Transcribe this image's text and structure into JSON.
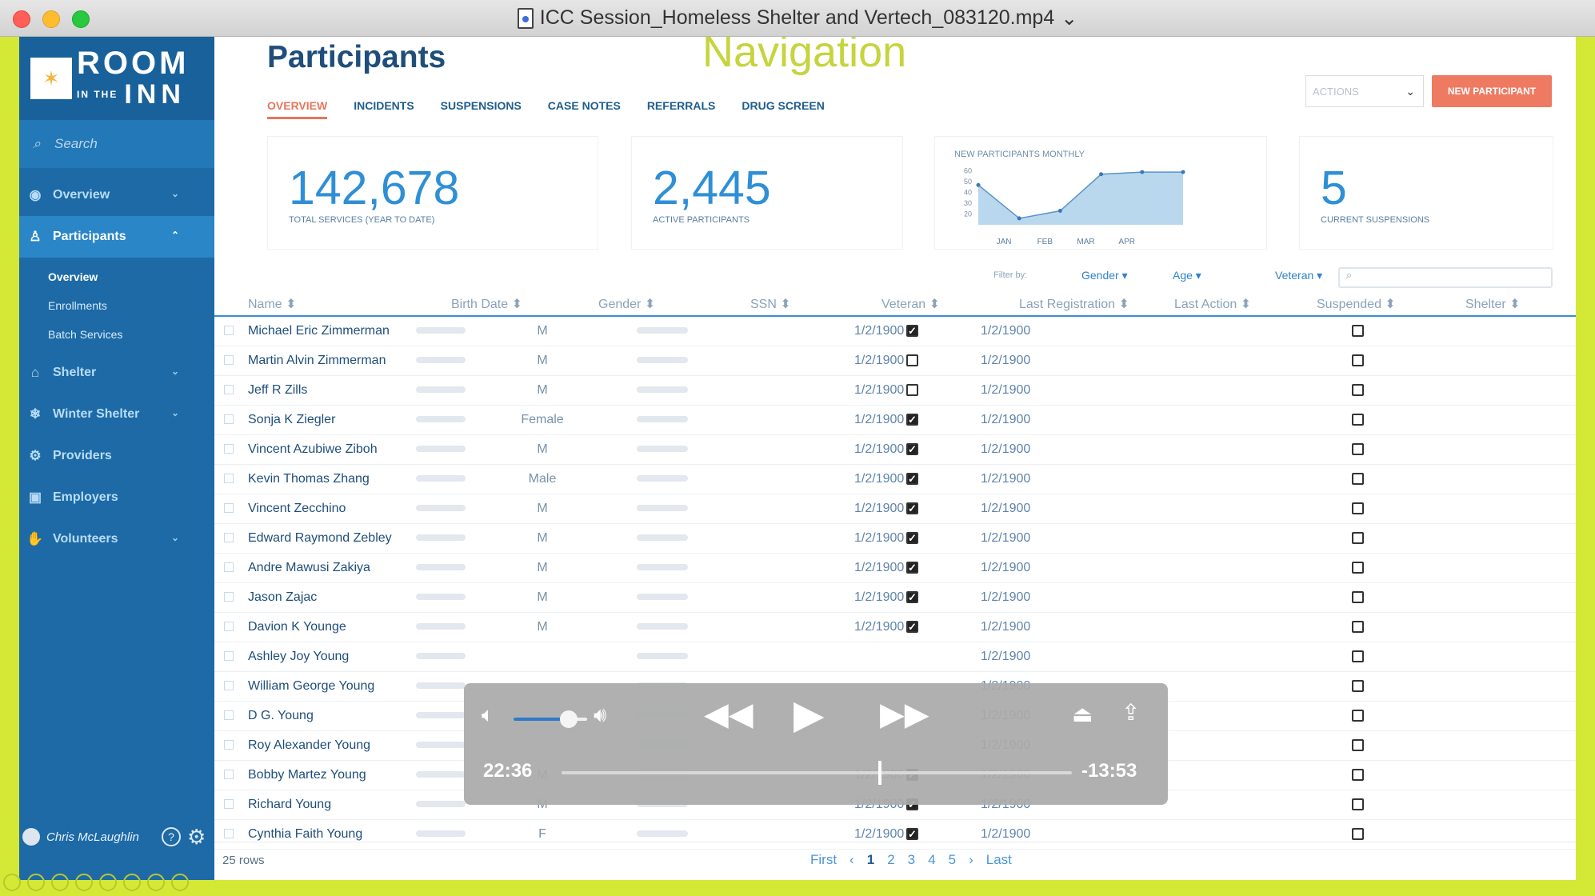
{
  "window": {
    "title": "ICC Session_Homeless Shelter and Vertech_083120.mp4"
  },
  "overlay_text": "Navigation",
  "logo": {
    "room": "ROOM",
    "in_the": "IN THE",
    "inn": "INN"
  },
  "sidebar": {
    "search_placeholder": "Search",
    "items": [
      {
        "label": "Overview",
        "icon": "eye-icon"
      },
      {
        "label": "Participants",
        "icon": "user-icon"
      },
      {
        "label": "Shelter",
        "icon": "home-icon"
      },
      {
        "label": "Winter Shelter",
        "icon": "snowflake-icon"
      },
      {
        "label": "Providers",
        "icon": "gear-icon"
      },
      {
        "label": "Employers",
        "icon": "briefcase-icon"
      },
      {
        "label": "Volunteers",
        "icon": "hand-icon"
      }
    ],
    "subitems": [
      "Overview",
      "Enrollments",
      "Batch Services"
    ]
  },
  "user": {
    "name": "Chris McLaughlin"
  },
  "page": {
    "title": "Participants"
  },
  "tabs": [
    "OVERVIEW",
    "INCIDENTS",
    "SUSPENSIONS",
    "CASE NOTES",
    "REFERRALS",
    "DRUG SCREEN"
  ],
  "actions": {
    "label": "ACTIONS",
    "new_participant": "NEW PARTICIPANT"
  },
  "stats": [
    {
      "value": "142,678",
      "caption": "TOTAL SERVICES (YEAR TO DATE)"
    },
    {
      "value": "2,445",
      "caption": "ACTIVE PARTICIPANTS"
    },
    {
      "value": "5",
      "caption": "CURRENT SUSPENSIONS"
    }
  ],
  "chart_data": {
    "type": "area",
    "title": "NEW PARTICIPANTS MONTHLY",
    "categories": [
      "JAN",
      "FEB",
      "MAR",
      "APR"
    ],
    "yticks": [
      60,
      50,
      40,
      30,
      20
    ],
    "ylim": [
      10,
      65
    ],
    "x": [
      0,
      0.25,
      0.5,
      0.75,
      1.0,
      1.25
    ],
    "values": [
      47,
      16,
      23,
      57,
      59,
      59
    ],
    "accent": "#2f8fd6"
  },
  "filters": {
    "label": "Filter by:",
    "gender": "Gender",
    "age": "Age",
    "veteran": "Veteran"
  },
  "table": {
    "columns": [
      "Name",
      "Birth Date",
      "Gender",
      "SSN",
      "Veteran",
      "Last Registration",
      "Last Action",
      "Suspended",
      "Shelter"
    ],
    "rows": [
      {
        "name": "Michael Eric Zimmerman",
        "gender": "M",
        "veteran": true,
        "last_registration": "1/2/1900",
        "last_action": "1/2/1900",
        "suspended": false
      },
      {
        "name": "Martin Alvin Zimmerman",
        "gender": "M",
        "veteran": false,
        "last_registration": "1/2/1900",
        "last_action": "1/2/1900",
        "suspended": false
      },
      {
        "name": "Jeff R Zills",
        "gender": "M",
        "veteran": false,
        "last_registration": "1/2/1900",
        "last_action": "1/2/1900",
        "suspended": false
      },
      {
        "name": "Sonja K Ziegler",
        "gender": "Female",
        "veteran": true,
        "last_registration": "1/2/1900",
        "last_action": "1/2/1900",
        "suspended": false
      },
      {
        "name": "Vincent Azubiwe Ziboh",
        "gender": "M",
        "veteran": true,
        "last_registration": "1/2/1900",
        "last_action": "1/2/1900",
        "suspended": false
      },
      {
        "name": "Kevin Thomas Zhang",
        "gender": "Male",
        "veteran": true,
        "last_registration": "1/2/1900",
        "last_action": "1/2/1900",
        "suspended": false
      },
      {
        "name": "Vincent Zecchino",
        "gender": "M",
        "veteran": true,
        "last_registration": "1/2/1900",
        "last_action": "1/2/1900",
        "suspended": false
      },
      {
        "name": "Edward Raymond Zebley",
        "gender": "M",
        "veteran": true,
        "last_registration": "1/2/1900",
        "last_action": "1/2/1900",
        "suspended": false
      },
      {
        "name": "Andre Mawusi Zakiya",
        "gender": "M",
        "veteran": true,
        "last_registration": "1/2/1900",
        "last_action": "1/2/1900",
        "suspended": false
      },
      {
        "name": "Jason Zajac",
        "gender": "M",
        "veteran": true,
        "last_registration": "1/2/1900",
        "last_action": "1/2/1900",
        "suspended": false
      },
      {
        "name": "Davion K Younge",
        "gender": "M",
        "veteran": true,
        "last_registration": "1/2/1900",
        "last_action": "1/2/1900",
        "suspended": false
      },
      {
        "name": "Ashley Joy Young",
        "gender": "",
        "veteran": null,
        "last_registration": "",
        "last_action": "1/2/1900",
        "suspended": false
      },
      {
        "name": "William George Young",
        "gender": "",
        "veteran": null,
        "last_registration": "",
        "last_action": "1/2/1900",
        "suspended": false
      },
      {
        "name": "D G. Young",
        "gender": "",
        "veteran": null,
        "last_registration": "",
        "last_action": "1/2/1900",
        "suspended": false
      },
      {
        "name": "Roy Alexander Young",
        "gender": "",
        "veteran": null,
        "last_registration": "",
        "last_action": "1/2/1900",
        "suspended": false
      },
      {
        "name": "Bobby Martez Young",
        "gender": "M",
        "veteran": true,
        "last_registration": "1/2/1900",
        "last_action": "1/2/1900",
        "suspended": false
      },
      {
        "name": "Richard Young",
        "gender": "M",
        "veteran": true,
        "last_registration": "1/2/1900",
        "last_action": "1/2/1900",
        "suspended": false
      },
      {
        "name": "Cynthia Faith Young",
        "gender": "F",
        "veteran": true,
        "last_registration": "1/2/1900",
        "last_action": "1/2/1900",
        "suspended": false
      }
    ]
  },
  "footer": {
    "rows_count": "25 rows",
    "pages": [
      "First",
      "‹",
      "1",
      "2",
      "3",
      "4",
      "5",
      "›",
      "Last"
    ]
  },
  "player": {
    "elapsed": "22:36",
    "remaining": "-13:53",
    "volume_fraction": 0.75,
    "progress_fraction": 0.62
  }
}
